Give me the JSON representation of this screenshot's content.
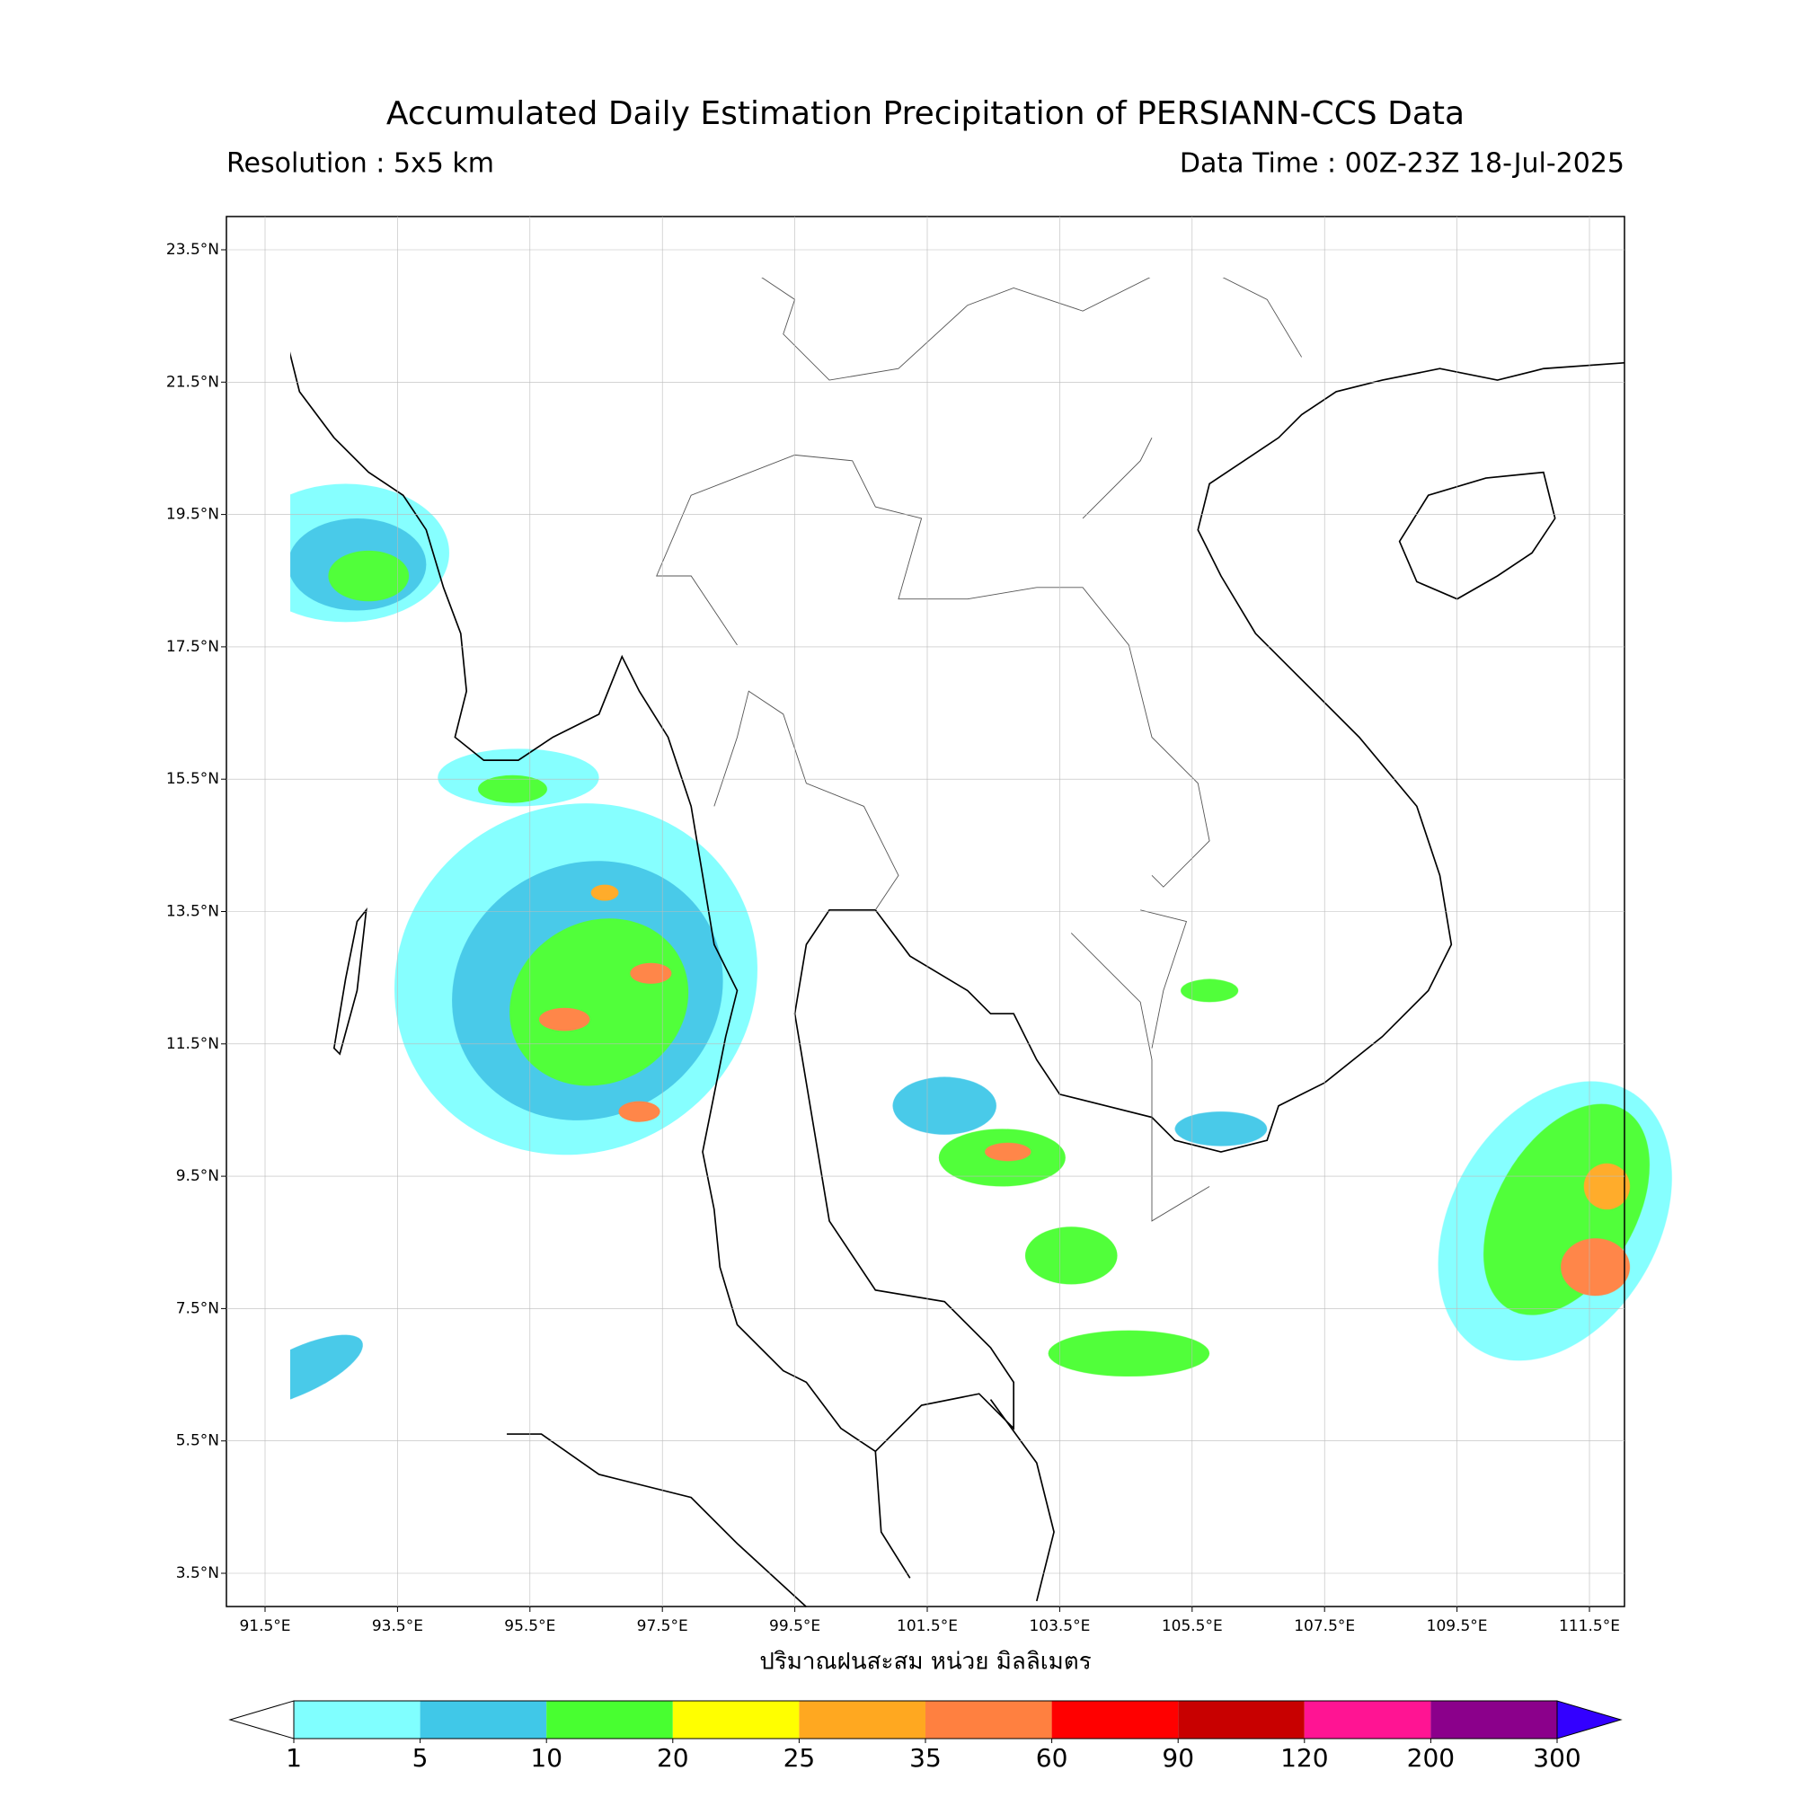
{
  "header": {
    "title": "Accumulated Daily Estimation Precipitation of PERSIANN-CCS Data",
    "resolution": "Resolution : 5x5 km",
    "data_time": "Data Time : 00Z-23Z 18-Jul-2025"
  },
  "map": {
    "lat_ticks": [
      {
        "value": 23.5,
        "label": "23.5°N"
      },
      {
        "value": 21.5,
        "label": "21.5°N"
      },
      {
        "value": 19.5,
        "label": "19.5°N"
      },
      {
        "value": 17.5,
        "label": "17.5°N"
      },
      {
        "value": 15.5,
        "label": "15.5°N"
      },
      {
        "value": 13.5,
        "label": "13.5°N"
      },
      {
        "value": 11.5,
        "label": "11.5°N"
      },
      {
        "value": 9.5,
        "label": "9.5°N"
      },
      {
        "value": 7.5,
        "label": "7.5°N"
      },
      {
        "value": 5.5,
        "label": "5.5°N"
      },
      {
        "value": 3.5,
        "label": "3.5°N"
      }
    ],
    "lon_ticks": [
      {
        "value": 91.5,
        "label": "91.5°E"
      },
      {
        "value": 93.5,
        "label": "93.5°E"
      },
      {
        "value": 95.5,
        "label": "95.5°E"
      },
      {
        "value": 97.5,
        "label": "97.5°E"
      },
      {
        "value": 99.5,
        "label": "99.5°E"
      },
      {
        "value": 101.5,
        "label": "101.5°E"
      },
      {
        "value": 103.5,
        "label": "103.5°E"
      },
      {
        "value": 105.5,
        "label": "105.5°E"
      },
      {
        "value": 107.5,
        "label": "107.5°E"
      },
      {
        "value": 109.5,
        "label": "109.5°E"
      },
      {
        "value": 111.5,
        "label": "111.5°E"
      }
    ],
    "axis_label": "ปริมาณฝนสะสม หน่วย มิลลิเมตร",
    "grid": true
  },
  "colorbar": {
    "levels": [
      1,
      5,
      10,
      20,
      25,
      35,
      60,
      90,
      120,
      200,
      300
    ],
    "colors": [
      "#80ffff",
      "#40c8e8",
      "#48ff30",
      "#ffff00",
      "#ffa820",
      "#ff8040",
      "#ff0000",
      "#c80000",
      "#ff1493",
      "#8b008b"
    ],
    "under_color": "#ffffff",
    "over_color": "#3300ff"
  }
}
